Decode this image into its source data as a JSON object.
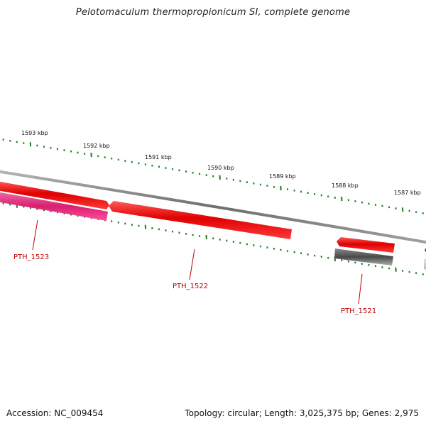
{
  "title": "Pelotomaculum thermopropionicum SI, complete genome",
  "footer": {
    "accession": "Accession: NC_009454",
    "summary": "Topology: circular; Length: 3,025,375 bp; Genes: 2,975"
  },
  "scale_labels": [
    "1593 kbp",
    "1592 kbp",
    "1591 kbp",
    "1590 kbp",
    "1589 kbp",
    "1588 kbp",
    "1587 kbp"
  ],
  "genes": [
    {
      "name": "PTH_1523",
      "color": "#e0287a"
    },
    {
      "name": "PTH_1522",
      "color": "#ff0000"
    },
    {
      "name": "PTH_1521",
      "color": "#606060"
    }
  ],
  "colors": {
    "backbone": "#8a8a8a",
    "red_feature": "#ff0000",
    "pink_feature": "#e0287a",
    "gray_feature": "#606060",
    "tick": "#1f7a1f",
    "label": "#c00000"
  }
}
